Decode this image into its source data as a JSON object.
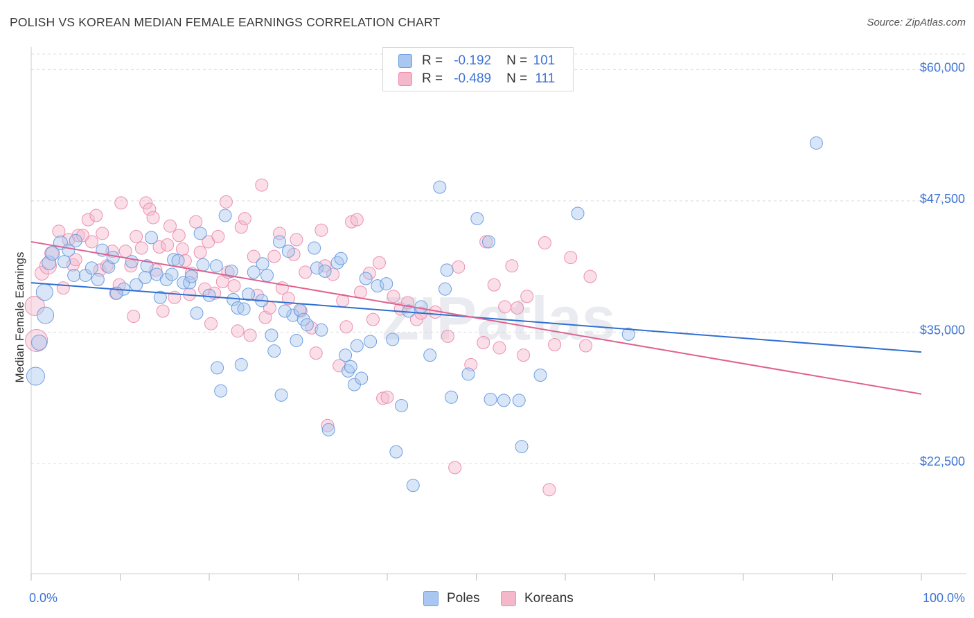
{
  "title": "POLISH VS KOREAN MEDIAN FEMALE EARNINGS CORRELATION CHART",
  "source": "Source: ZipAtlas.com",
  "watermark": "ZIPatlas",
  "colors": {
    "poles_fill": "#a9c7f0",
    "poles_stroke": "#6e9ee0",
    "poles_line": "#2f6fd0",
    "koreans_fill": "#f5b8cb",
    "koreans_stroke": "#ec8faf",
    "koreans_line": "#e0618e",
    "axis_label": "#3e74d6",
    "grid": "#dcdcdc"
  },
  "legend": {
    "poles": {
      "r_label": "R =",
      "r_value": "-0.192",
      "n_label": "N =",
      "n_value": "101"
    },
    "koreans": {
      "r_label": "R =",
      "r_value": "-0.489",
      "n_label": "N =",
      "n_value": "111"
    }
  },
  "chart_data": {
    "type": "scatter",
    "title": "POLISH VS KOREAN MEDIAN FEMALE EARNINGS CORRELATION CHART",
    "xlabel": "",
    "ylabel": "Median Female Earnings",
    "xlim": [
      0,
      100
    ],
    "ylim": [
      12000,
      62000
    ],
    "x_tick_labels": [
      "0.0%",
      "100.0%"
    ],
    "y_ticks": [
      22500,
      35000,
      47500,
      60000
    ],
    "y_tick_labels": [
      "$22,500",
      "$35,000",
      "$47,500",
      "$60,000"
    ],
    "legend_position": "top-center",
    "series": [
      {
        "name": "Poles",
        "r": -0.192,
        "n": 101,
        "trend": {
          "x": [
            0,
            100
          ],
          "y": [
            39700,
            33100
          ]
        },
        "points": [
          [
            0.5,
            30800,
            13
          ],
          [
            0.9,
            34000,
            11
          ],
          [
            1.5,
            38800,
            12
          ],
          [
            1.6,
            36600,
            12
          ],
          [
            2.0,
            41600,
            10
          ],
          [
            2.4,
            42500,
            10
          ],
          [
            3.3,
            43500,
            10
          ],
          [
            3.7,
            41700,
            9
          ],
          [
            4.2,
            42800,
            9
          ],
          [
            4.8,
            40400,
            9
          ],
          [
            5.0,
            43700,
            9
          ],
          [
            6.1,
            40400,
            9
          ],
          [
            6.8,
            41100,
            9
          ],
          [
            7.5,
            40000,
            9
          ],
          [
            8.0,
            42800,
            9
          ],
          [
            8.7,
            41200,
            9
          ],
          [
            9.2,
            42100,
            9
          ],
          [
            10.4,
            39100,
            9
          ],
          [
            11.3,
            41700,
            9
          ],
          [
            11.8,
            39500,
            9
          ],
          [
            12.8,
            40200,
            9
          ],
          [
            13.0,
            41300,
            9
          ],
          [
            14.1,
            40500,
            9
          ],
          [
            14.5,
            38300,
            9
          ],
          [
            15.2,
            40000,
            9
          ],
          [
            15.8,
            40500,
            9
          ],
          [
            16.0,
            41900,
            9
          ],
          [
            16.5,
            41800,
            9
          ],
          [
            17.1,
            39700,
            9
          ],
          [
            17.8,
            39700,
            9
          ],
          [
            18.0,
            40300,
            9
          ],
          [
            18.6,
            36800,
            9
          ],
          [
            19.0,
            44400,
            9
          ],
          [
            19.3,
            41400,
            9
          ],
          [
            20.0,
            38500,
            9
          ],
          [
            20.8,
            41300,
            9
          ],
          [
            20.9,
            31600,
            9
          ],
          [
            21.3,
            29400,
            9
          ],
          [
            21.8,
            46100,
            9
          ],
          [
            22.7,
            38100,
            9
          ],
          [
            23.2,
            37300,
            9
          ],
          [
            23.6,
            31900,
            9
          ],
          [
            23.9,
            37200,
            9
          ],
          [
            24.4,
            38600,
            9
          ],
          [
            25.0,
            40700,
            9
          ],
          [
            25.9,
            38000,
            9
          ],
          [
            26.0,
            41500,
            9
          ],
          [
            26.5,
            40400,
            9
          ],
          [
            27.0,
            34700,
            9
          ],
          [
            27.3,
            33200,
            9
          ],
          [
            27.9,
            43600,
            9
          ],
          [
            28.1,
            29000,
            9
          ],
          [
            28.9,
            42700,
            9
          ],
          [
            29.4,
            36600,
            9
          ],
          [
            29.8,
            34200,
            9
          ],
          [
            30.2,
            37100,
            9
          ],
          [
            30.6,
            36200,
            9
          ],
          [
            31.0,
            35700,
            9
          ],
          [
            31.8,
            43000,
            9
          ],
          [
            32.1,
            41100,
            9
          ],
          [
            32.6,
            35200,
            9
          ],
          [
            33.0,
            40800,
            9
          ],
          [
            33.4,
            25700,
            9
          ],
          [
            34.4,
            41600,
            9
          ],
          [
            34.8,
            42000,
            9
          ],
          [
            35.3,
            32800,
            9
          ],
          [
            35.6,
            31300,
            9
          ],
          [
            35.9,
            31700,
            9
          ],
          [
            36.3,
            30000,
            9
          ],
          [
            36.6,
            33700,
            9
          ],
          [
            37.1,
            30600,
            9
          ],
          [
            37.6,
            40100,
            9
          ],
          [
            38.1,
            34100,
            9
          ],
          [
            38.9,
            39400,
            9
          ],
          [
            39.9,
            39600,
            9
          ],
          [
            40.6,
            34300,
            9
          ],
          [
            41.0,
            23600,
            9
          ],
          [
            41.6,
            28000,
            9
          ],
          [
            42.4,
            37000,
            9
          ],
          [
            42.9,
            20400,
            9
          ],
          [
            43.8,
            37400,
            9
          ],
          [
            44.8,
            32800,
            9
          ],
          [
            45.9,
            48800,
            9
          ],
          [
            46.5,
            39100,
            9
          ],
          [
            46.7,
            40900,
            9
          ],
          [
            47.2,
            28800,
            9
          ],
          [
            49.1,
            31000,
            9
          ],
          [
            50.1,
            45800,
            9
          ],
          [
            51.4,
            43600,
            9
          ],
          [
            51.6,
            28600,
            9
          ],
          [
            53.1,
            28500,
            9
          ],
          [
            54.8,
            28500,
            9
          ],
          [
            55.1,
            24100,
            9
          ],
          [
            57.2,
            30900,
            9
          ],
          [
            61.4,
            46300,
            9
          ],
          [
            67.1,
            34800,
            9
          ],
          [
            88.2,
            53000,
            9
          ],
          [
            28.5,
            37000,
            9
          ],
          [
            13.5,
            44000,
            9
          ],
          [
            22.5,
            40800,
            9
          ],
          [
            9.6,
            38700,
            9
          ]
        ]
      },
      {
        "name": "Koreans",
        "r": -0.489,
        "n": 111,
        "trend": {
          "x": [
            0,
            100
          ],
          "y": [
            43600,
            29100
          ]
        },
        "points": [
          [
            0.4,
            37500,
            14
          ],
          [
            0.6,
            34200,
            16
          ],
          [
            1.2,
            40600,
            10
          ],
          [
            1.9,
            41300,
            12
          ],
          [
            2.3,
            42500,
            10
          ],
          [
            3.1,
            44600,
            9
          ],
          [
            3.6,
            39200,
            9
          ],
          [
            4.2,
            43800,
            9
          ],
          [
            4.7,
            41400,
            9
          ],
          [
            5.0,
            41900,
            9
          ],
          [
            5.3,
            44200,
            9
          ],
          [
            5.8,
            44200,
            9
          ],
          [
            6.4,
            45700,
            9
          ],
          [
            6.8,
            43600,
            9
          ],
          [
            7.3,
            46100,
            9
          ],
          [
            7.7,
            40900,
            9
          ],
          [
            8.0,
            44400,
            9
          ],
          [
            8.5,
            41300,
            9
          ],
          [
            9.1,
            42700,
            9
          ],
          [
            9.5,
            38700,
            9
          ],
          [
            9.9,
            39500,
            9
          ],
          [
            10.1,
            47300,
            9
          ],
          [
            10.6,
            42700,
            9
          ],
          [
            11.2,
            41300,
            9
          ],
          [
            11.5,
            36500,
            9
          ],
          [
            11.8,
            44100,
            9
          ],
          [
            12.4,
            43000,
            9
          ],
          [
            12.9,
            47300,
            9
          ],
          [
            13.3,
            46700,
            9
          ],
          [
            13.7,
            45900,
            9
          ],
          [
            14.0,
            40900,
            9
          ],
          [
            14.4,
            43100,
            9
          ],
          [
            14.8,
            37000,
            9
          ],
          [
            15.3,
            43300,
            9
          ],
          [
            15.6,
            45100,
            9
          ],
          [
            16.1,
            38300,
            9
          ],
          [
            16.6,
            44200,
            9
          ],
          [
            17.0,
            42900,
            9
          ],
          [
            17.3,
            41800,
            9
          ],
          [
            17.8,
            38600,
            9
          ],
          [
            18.0,
            40600,
            9
          ],
          [
            18.5,
            45500,
            9
          ],
          [
            19.0,
            42600,
            9
          ],
          [
            19.5,
            39100,
            9
          ],
          [
            19.9,
            43600,
            9
          ],
          [
            20.2,
            35800,
            9
          ],
          [
            20.6,
            38700,
            9
          ],
          [
            21.0,
            44100,
            9
          ],
          [
            21.5,
            39800,
            9
          ],
          [
            21.9,
            47400,
            9
          ],
          [
            22.1,
            40700,
            9
          ],
          [
            22.8,
            39400,
            9
          ],
          [
            23.2,
            35100,
            9
          ],
          [
            23.6,
            45000,
            9
          ],
          [
            24.0,
            45800,
            9
          ],
          [
            24.6,
            34700,
            9
          ],
          [
            25.0,
            42200,
            9
          ],
          [
            25.4,
            38500,
            9
          ],
          [
            25.9,
            49000,
            9
          ],
          [
            26.3,
            36400,
            9
          ],
          [
            26.8,
            37300,
            9
          ],
          [
            27.3,
            42200,
            9
          ],
          [
            27.9,
            44400,
            9
          ],
          [
            28.2,
            39200,
            9
          ],
          [
            28.9,
            38200,
            9
          ],
          [
            29.5,
            42400,
            9
          ],
          [
            29.8,
            43800,
            9
          ],
          [
            30.3,
            37000,
            9
          ],
          [
            30.8,
            40700,
            9
          ],
          [
            31.5,
            35400,
            9
          ],
          [
            32.0,
            33000,
            9
          ],
          [
            32.6,
            44700,
            9
          ],
          [
            33.0,
            41300,
            9
          ],
          [
            33.3,
            26100,
            9
          ],
          [
            33.9,
            40500,
            9
          ],
          [
            34.6,
            31800,
            9
          ],
          [
            35.0,
            38000,
            9
          ],
          [
            35.4,
            35500,
            9
          ],
          [
            36.0,
            45500,
            9
          ],
          [
            36.6,
            45700,
            9
          ],
          [
            37.0,
            38800,
            9
          ],
          [
            38.0,
            40600,
            9
          ],
          [
            38.4,
            36200,
            9
          ],
          [
            39.1,
            41600,
            9
          ],
          [
            39.5,
            28700,
            9
          ],
          [
            40.0,
            28800,
            9
          ],
          [
            40.7,
            38400,
            9
          ],
          [
            41.5,
            37200,
            9
          ],
          [
            42.3,
            37800,
            9
          ],
          [
            43.3,
            36200,
            9
          ],
          [
            43.8,
            36800,
            9
          ],
          [
            45.4,
            36900,
            9
          ],
          [
            46.8,
            34600,
            9
          ],
          [
            47.6,
            22100,
            9
          ],
          [
            48.0,
            41200,
            9
          ],
          [
            49.4,
            31900,
            9
          ],
          [
            50.8,
            34000,
            9
          ],
          [
            51.1,
            43600,
            9
          ],
          [
            52.0,
            39500,
            9
          ],
          [
            52.6,
            33500,
            9
          ],
          [
            53.2,
            37400,
            9
          ],
          [
            54.0,
            41300,
            9
          ],
          [
            54.6,
            37300,
            9
          ],
          [
            55.3,
            32800,
            9
          ],
          [
            55.7,
            38400,
            9
          ],
          [
            57.7,
            43500,
            9
          ],
          [
            58.2,
            20000,
            9
          ],
          [
            58.8,
            33800,
            9
          ],
          [
            60.6,
            42100,
            9
          ],
          [
            62.3,
            33700,
            9
          ],
          [
            62.8,
            40300,
            9
          ]
        ]
      }
    ]
  },
  "bottom_legend": {
    "poles": "Poles",
    "koreans": "Koreans"
  }
}
